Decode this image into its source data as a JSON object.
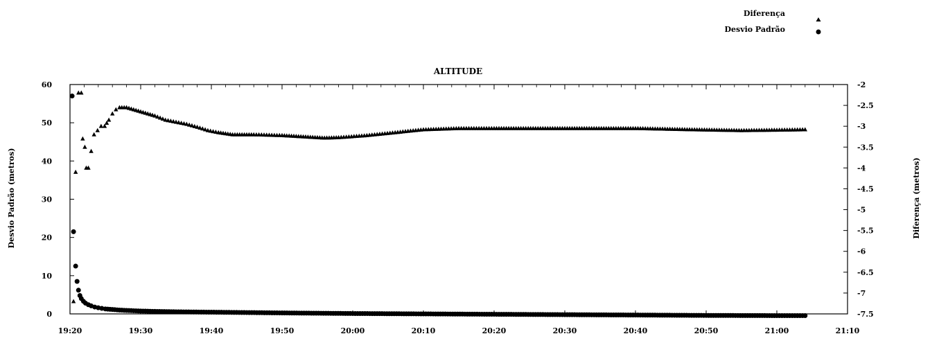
{
  "chart_data": {
    "type": "scatter",
    "title": "ALTITUDE",
    "xlabel": "",
    "ylabel_left": "Desvio Padrão (metros)",
    "ylabel_right": "Diferença (metros)",
    "x_tick_labels": [
      "19:20",
      "19:30",
      "19:40",
      "19:50",
      "20:00",
      "20:10",
      "20:20",
      "20:30",
      "20:40",
      "20:50",
      "21:00",
      "21:10"
    ],
    "x_range_minutes": [
      0,
      110
    ],
    "ylim_left": [
      0,
      60
    ],
    "y_ticks_left": [
      "0",
      "10",
      "20",
      "30",
      "40",
      "50",
      "60"
    ],
    "ylim_right": [
      -7.5,
      -2
    ],
    "y_ticks_right": [
      "-2",
      "-2.5",
      "-3",
      "-3.5",
      "-4",
      "-4.5",
      "-5",
      "-5.5",
      "-6",
      "-6.5",
      "-7",
      "-7.5"
    ],
    "grid": false,
    "legend_position": "top-right",
    "series": [
      {
        "name": "Diferença",
        "marker": "triangle",
        "axis": "right",
        "color": "#000000",
        "points": [
          [
            0.5,
            -7.2
          ],
          [
            0.8,
            -4.1
          ],
          [
            1.2,
            -2.2
          ],
          [
            1.6,
            -2.2
          ],
          [
            1.8,
            -3.3
          ],
          [
            2.1,
            -3.5
          ],
          [
            2.3,
            -4.0
          ],
          [
            2.6,
            -4.0
          ],
          [
            3.0,
            -3.6
          ],
          [
            3.4,
            -3.2
          ],
          [
            3.9,
            -3.1
          ],
          [
            4.4,
            -3.0
          ],
          [
            4.9,
            -3.0
          ],
          [
            5.5,
            -2.85
          ],
          [
            6.0,
            -2.7
          ],
          [
            6.5,
            -2.6
          ],
          [
            7.0,
            -2.55
          ],
          [
            8.0,
            -2.55
          ],
          [
            9.0,
            -2.6
          ],
          [
            10.0,
            -2.65
          ],
          [
            11.0,
            -2.7
          ],
          [
            12.0,
            -2.75
          ],
          [
            13.5,
            -2.85
          ],
          [
            15.0,
            -2.9
          ],
          [
            16.5,
            -2.95
          ],
          [
            18.0,
            -3.02
          ],
          [
            19.5,
            -3.1
          ],
          [
            21.0,
            -3.15
          ],
          [
            23.0,
            -3.2
          ],
          [
            26.0,
            -3.2
          ],
          [
            30.0,
            -3.22
          ],
          [
            33.0,
            -3.25
          ],
          [
            36.0,
            -3.28
          ],
          [
            38.0,
            -3.27
          ],
          [
            42.0,
            -3.22
          ],
          [
            46.0,
            -3.15
          ],
          [
            50.0,
            -3.08
          ],
          [
            55.0,
            -3.05
          ],
          [
            60.0,
            -3.05
          ],
          [
            70.0,
            -3.05
          ],
          [
            80.0,
            -3.05
          ],
          [
            88.0,
            -3.08
          ],
          [
            95.0,
            -3.1
          ],
          [
            100.0,
            -3.09
          ],
          [
            104.0,
            -3.08
          ]
        ]
      },
      {
        "name": "Desvio Padrão",
        "marker": "circle",
        "axis": "left",
        "color": "#000000",
        "points": [
          [
            0.3,
            57
          ],
          [
            0.5,
            21.5
          ],
          [
            0.8,
            12.5
          ],
          [
            1.0,
            8.5
          ],
          [
            1.2,
            6.2
          ],
          [
            1.4,
            4.8
          ],
          [
            1.6,
            4.0
          ],
          [
            1.9,
            3.3
          ],
          [
            2.2,
            2.8
          ],
          [
            2.6,
            2.4
          ],
          [
            3.0,
            2.1
          ],
          [
            3.5,
            1.8
          ],
          [
            4.0,
            1.6
          ],
          [
            4.5,
            1.45
          ],
          [
            5.0,
            1.3
          ],
          [
            6.0,
            1.15
          ],
          [
            7.0,
            1.0
          ],
          [
            8.0,
            0.9
          ],
          [
            10.0,
            0.75
          ],
          [
            12.0,
            0.65
          ],
          [
            15.0,
            0.55
          ],
          [
            20.0,
            0.45
          ],
          [
            25.0,
            0.35
          ],
          [
            30.0,
            0.25
          ],
          [
            40.0,
            0.1
          ],
          [
            50.0,
            0.0
          ],
          [
            60.0,
            -0.1
          ],
          [
            70.0,
            -0.2
          ],
          [
            80.0,
            -0.3
          ],
          [
            90.0,
            -0.4
          ],
          [
            100.0,
            -0.45
          ],
          [
            104.0,
            -0.45
          ]
        ]
      }
    ]
  },
  "legend": {
    "items": [
      {
        "label": "Diferença",
        "marker": "triangle"
      },
      {
        "label": "Desvio Padrão",
        "marker": "circle"
      }
    ]
  }
}
